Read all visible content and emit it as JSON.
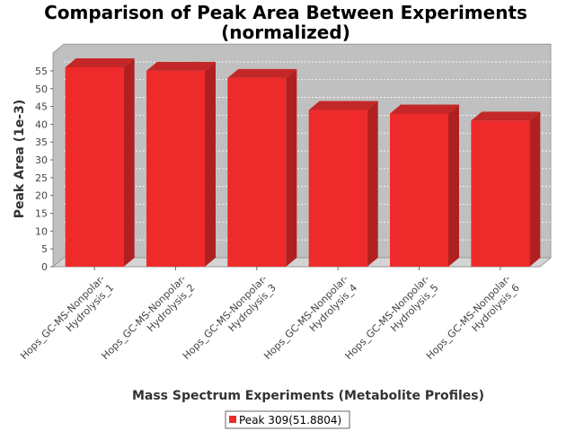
{
  "chart_data": {
    "type": "bar",
    "title_line1": "Comparison of Peak Area Between Experiments",
    "title_line2": "(normalized)",
    "xlabel": "Mass Spectrum Experiments (Metabolite Profiles)",
    "ylabel": "Peak Area (1e-3)",
    "categories": [
      [
        "Hops_GC-MS-Nonpolar-",
        "Hydrolysis_1"
      ],
      [
        "Hops_GC-MS-Nonpolar-",
        "Hydrolysis_2"
      ],
      [
        "Hops_GC-MS-Nonpolar-",
        "Hydrolysis_3"
      ],
      [
        "Hops_GC-MS-Nonpolar-",
        "Hydrolysis_4"
      ],
      [
        "Hops_GC-MS-Nonpolar-",
        "Hydrolysis_5"
      ],
      [
        "Hops_GC-MS-Nonpolar-",
        "Hydrolysis_6"
      ]
    ],
    "series": [
      {
        "name": "Peak 309(51.8804)",
        "values": [
          56,
          55,
          53,
          44,
          43,
          41
        ]
      }
    ],
    "ylim": [
      0,
      60
    ],
    "yticks": [
      0,
      5,
      10,
      15,
      20,
      25,
      30,
      35,
      40,
      45,
      50,
      55
    ],
    "grid": true,
    "legend_position": "bottom",
    "colors": {
      "bar_front": "#ee2a2a",
      "bar_top": "#c42727",
      "bar_side": "#b02020",
      "plot_back": "#c0c0c0",
      "plot_floor": "#d4d4d4",
      "grid": "#ffffff"
    }
  }
}
